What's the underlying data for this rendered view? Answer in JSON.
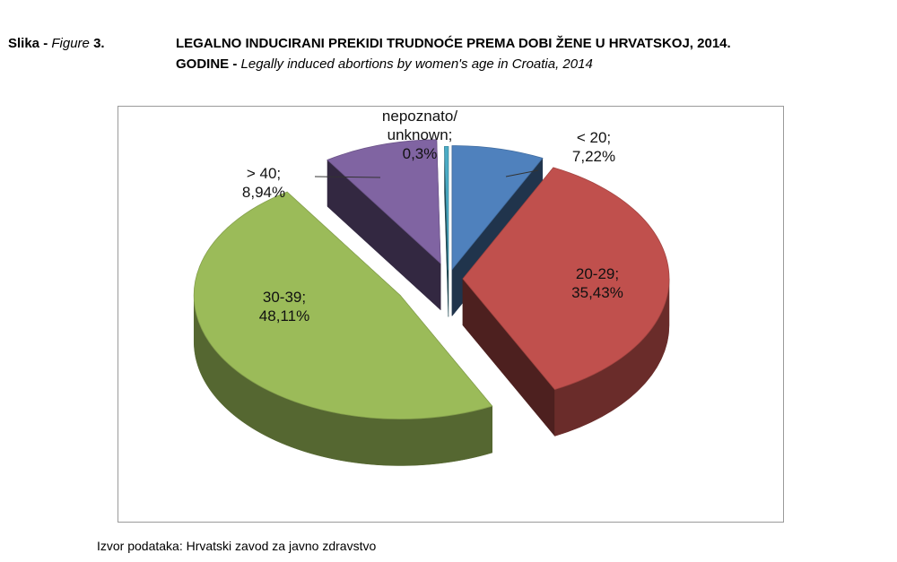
{
  "figure": {
    "label_prefix": "Slika -",
    "label_italic": "Figure",
    "label_number": "3."
  },
  "title": {
    "line1": "LEGALNO INDUCIRANI PREKIDI TRUDNOĆE PREMA DOBI ŽENE U HRVATSKOJ, 2014.",
    "line2_bold": "GODINE -",
    "line2_italic": "Legally induced abortions by women's age in Croatia, 2014"
  },
  "chart_data": {
    "type": "pie",
    "title": "",
    "slices": [
      {
        "category": "< 20",
        "value": 7.22,
        "label_line1": "< 20;",
        "label_line2": "7,22%",
        "color": "#4f81bd"
      },
      {
        "category": "20-29",
        "value": 35.43,
        "label_line1": "20-29;",
        "label_line2": "35,43%",
        "color": "#c0504d"
      },
      {
        "category": "30-39",
        "value": 48.11,
        "label_line1": "30-39;",
        "label_line2": "48,11%",
        "color": "#9bbb59"
      },
      {
        "category": "> 40",
        "value": 8.94,
        "label_line1": "> 40;",
        "label_line2": "8,94%",
        "color": "#8064a2"
      },
      {
        "category": "nepoznato/ unknown",
        "value": 0.3,
        "label_line1": "nepoznato/",
        "label_line2": "unknown;",
        "label_line3": "0,3%",
        "color": "#4bacc6"
      }
    ],
    "legend": "none",
    "exploded": true,
    "style": "3d"
  },
  "source": "Izvor podataka:  Hrvatski zavod za javno zdravstvo"
}
